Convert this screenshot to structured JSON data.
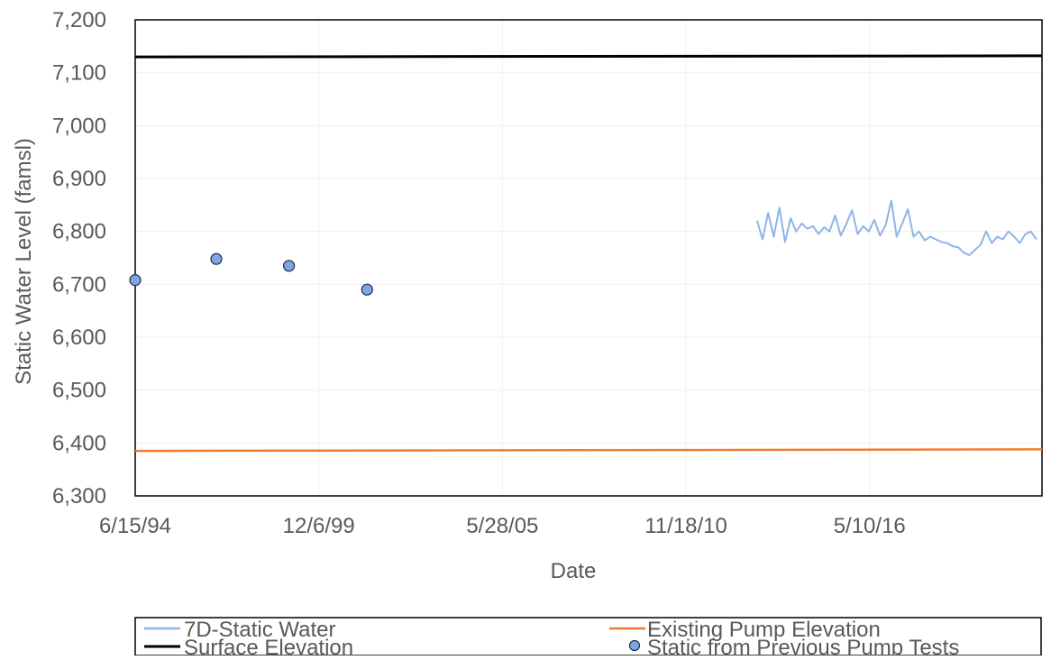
{
  "chart_data": {
    "type": "line",
    "xlabel": "Date",
    "ylabel": "Static Water Level (famsl)",
    "ylim": [
      6300,
      7200
    ],
    "yticks": [
      6300,
      6400,
      6500,
      6600,
      6700,
      6800,
      6900,
      7000,
      7100,
      7200
    ],
    "ytick_labels": [
      "6,300",
      "6,400",
      "6,500",
      "6,600",
      "6,700",
      "6,800",
      "6,900",
      "7,000",
      "7,100",
      "7,200"
    ],
    "xlim": [
      "1994-06-15",
      "2021-07-01"
    ],
    "xticks": [
      "1994-06-15",
      "1999-12-06",
      "2005-05-28",
      "2010-11-18",
      "2016-05-10"
    ],
    "xtick_labels": [
      "6/15/94",
      "12/6/99",
      "5/28/05",
      "11/18/10",
      "5/10/16"
    ],
    "grid": true,
    "legend_position": "bottom",
    "colors": {
      "static_water": "#8fb4e8",
      "surface": "#000000",
      "pump": "#ed7d31",
      "pump_tests_fill": "#7ea6e0",
      "axis_text": "#595959",
      "grid": "#f0f0f0"
    },
    "series": [
      {
        "name": "7D-Static Water",
        "kind": "line",
        "x": [
          "2013-01-01",
          "2013-03-01",
          "2013-05-01",
          "2013-07-01",
          "2013-09-01",
          "2013-11-01",
          "2014-01-01",
          "2014-03-01",
          "2014-05-01",
          "2014-07-01",
          "2014-09-01",
          "2014-11-01",
          "2015-01-01",
          "2015-03-01",
          "2015-05-01",
          "2015-07-01",
          "2015-09-01",
          "2015-11-01",
          "2016-01-01",
          "2016-03-01",
          "2016-05-01",
          "2016-07-01",
          "2016-09-01",
          "2016-11-01",
          "2017-01-01",
          "2017-03-01",
          "2017-05-01",
          "2017-07-01",
          "2017-09-01",
          "2017-11-01",
          "2018-01-01",
          "2018-03-01",
          "2018-05-01",
          "2018-07-01",
          "2018-09-01",
          "2018-11-01",
          "2019-01-01",
          "2019-03-01",
          "2019-05-01",
          "2019-07-01",
          "2019-09-01",
          "2019-11-01",
          "2020-01-01",
          "2020-03-01",
          "2020-05-01",
          "2020-07-01",
          "2020-09-01",
          "2020-11-01",
          "2021-01-01",
          "2021-03-01",
          "2021-05-01"
        ],
        "y": [
          6820,
          6785,
          6835,
          6790,
          6845,
          6780,
          6825,
          6800,
          6815,
          6805,
          6810,
          6795,
          6808,
          6800,
          6830,
          6792,
          6815,
          6840,
          6795,
          6810,
          6800,
          6822,
          6792,
          6812,
          6858,
          6790,
          6815,
          6842,
          6790,
          6800,
          6783,
          6790,
          6785,
          6780,
          6778,
          6772,
          6770,
          6760,
          6755,
          6765,
          6775,
          6800,
          6778,
          6790,
          6785,
          6800,
          6790,
          6778,
          6795,
          6800,
          6785
        ]
      },
      {
        "name": "Existing Pump Elevation",
        "kind": "line",
        "x": [
          "1994-06-15",
          "2021-07-01"
        ],
        "y": [
          6385,
          6388
        ]
      },
      {
        "name": "Surface Elevation",
        "kind": "line",
        "x": [
          "1994-06-15",
          "2021-07-01"
        ],
        "y": [
          7130,
          7132
        ]
      },
      {
        "name": "Static from Previous Pump Tests",
        "kind": "scatter",
        "x": [
          "1994-06-15",
          "1996-11-15",
          "1999-01-15",
          "2001-05-15"
        ],
        "y": [
          6708,
          6748,
          6735,
          6690
        ]
      }
    ]
  }
}
